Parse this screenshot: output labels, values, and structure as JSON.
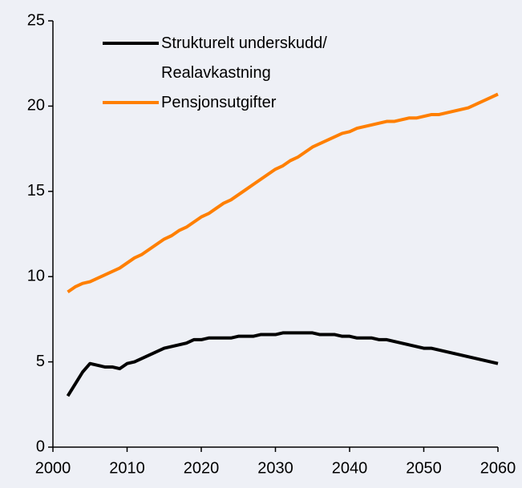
{
  "chart_data": {
    "type": "line",
    "x": [
      2002,
      2003,
      2004,
      2005,
      2006,
      2007,
      2008,
      2009,
      2010,
      2011,
      2012,
      2013,
      2014,
      2015,
      2016,
      2017,
      2018,
      2019,
      2020,
      2021,
      2022,
      2023,
      2024,
      2025,
      2026,
      2027,
      2028,
      2029,
      2030,
      2031,
      2032,
      2033,
      2034,
      2035,
      2036,
      2037,
      2038,
      2039,
      2040,
      2041,
      2042,
      2043,
      2044,
      2045,
      2046,
      2047,
      2048,
      2049,
      2050,
      2051,
      2052,
      2053,
      2054,
      2055,
      2056,
      2057,
      2058,
      2059,
      2060
    ],
    "series": [
      {
        "name": "Strukturelt underskudd/\nRealavkastning",
        "color": "#000000",
        "values": [
          3.0,
          3.7,
          4.4,
          4.9,
          4.8,
          4.7,
          4.7,
          4.6,
          4.9,
          5.0,
          5.2,
          5.4,
          5.6,
          5.8,
          5.9,
          6.0,
          6.1,
          6.3,
          6.3,
          6.4,
          6.4,
          6.4,
          6.4,
          6.5,
          6.5,
          6.5,
          6.6,
          6.6,
          6.6,
          6.7,
          6.7,
          6.7,
          6.7,
          6.7,
          6.6,
          6.6,
          6.6,
          6.5,
          6.5,
          6.4,
          6.4,
          6.4,
          6.3,
          6.3,
          6.2,
          6.1,
          6.0,
          5.9,
          5.8,
          5.8,
          5.7,
          5.6,
          5.5,
          5.4,
          5.3,
          5.2,
          5.1,
          5.0,
          4.9
        ]
      },
      {
        "name": "Pensjonsutgifter",
        "color": "#ff7f00",
        "values": [
          9.1,
          9.4,
          9.6,
          9.7,
          9.9,
          10.1,
          10.3,
          10.5,
          10.8,
          11.1,
          11.3,
          11.6,
          11.9,
          12.2,
          12.4,
          12.7,
          12.9,
          13.2,
          13.5,
          13.7,
          14.0,
          14.3,
          14.5,
          14.8,
          15.1,
          15.4,
          15.7,
          16.0,
          16.3,
          16.5,
          16.8,
          17.0,
          17.3,
          17.6,
          17.8,
          18.0,
          18.2,
          18.4,
          18.5,
          18.7,
          18.8,
          18.9,
          19.0,
          19.1,
          19.1,
          19.2,
          19.3,
          19.3,
          19.4,
          19.5,
          19.5,
          19.6,
          19.7,
          19.8,
          19.9,
          20.1,
          20.3,
          20.5,
          20.7
        ]
      }
    ],
    "xlim": [
      2000,
      2060
    ],
    "xticks": [
      2000,
      2010,
      2020,
      2030,
      2040,
      2050,
      2060
    ],
    "ylim": [
      0,
      25
    ],
    "yticks": [
      0,
      5,
      10,
      15,
      20,
      25
    ],
    "grid": false,
    "legend": "top-left"
  }
}
